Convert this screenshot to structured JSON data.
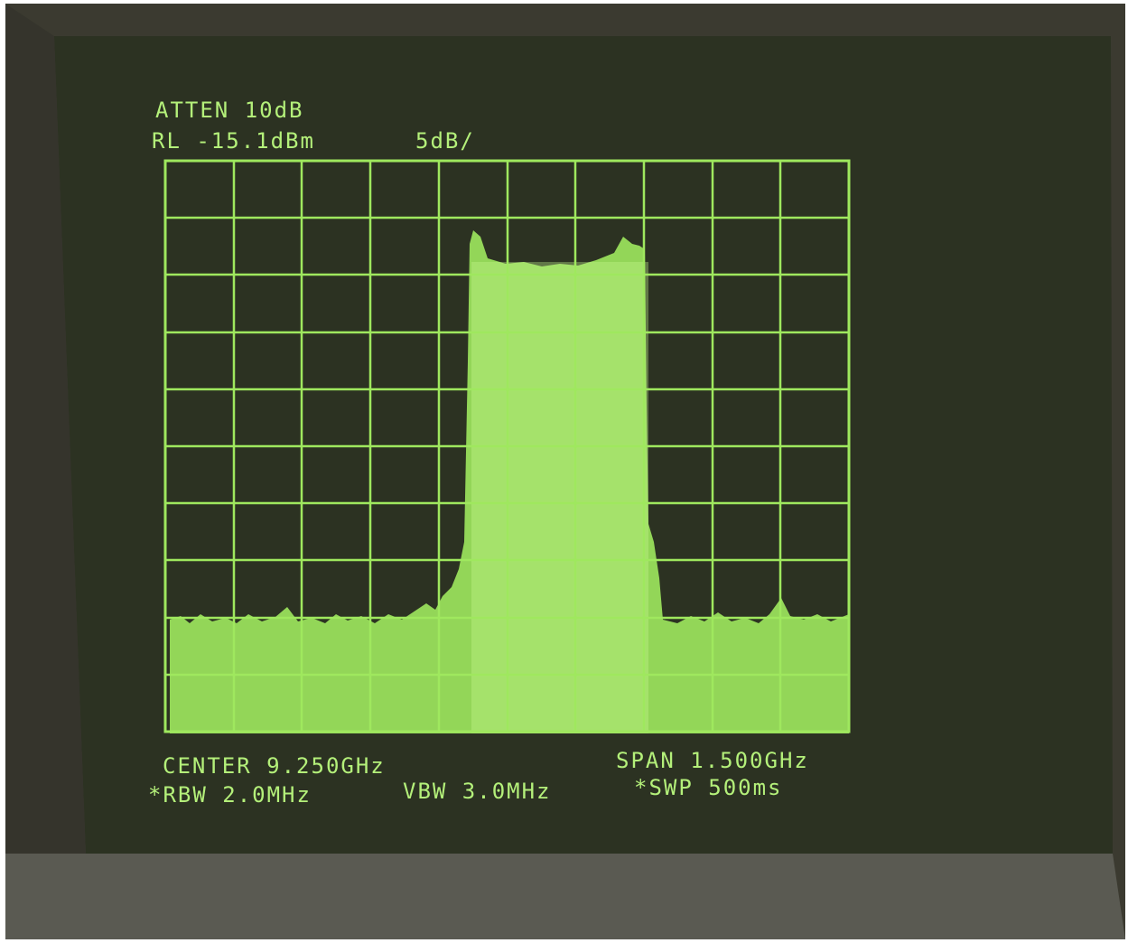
{
  "screen": {
    "header": {
      "atten": "ATTEN 10dB",
      "reference_level": "RL -15.1dBm",
      "scale": "5dB/"
    },
    "footer": {
      "center": "CENTER 9.250GHz",
      "span": "SPAN 1.500GHz",
      "rbw": "*RBW 2.0MHz",
      "vbw": "VBW 3.0MHz",
      "sweep": "*SWP 500ms"
    }
  }
}
